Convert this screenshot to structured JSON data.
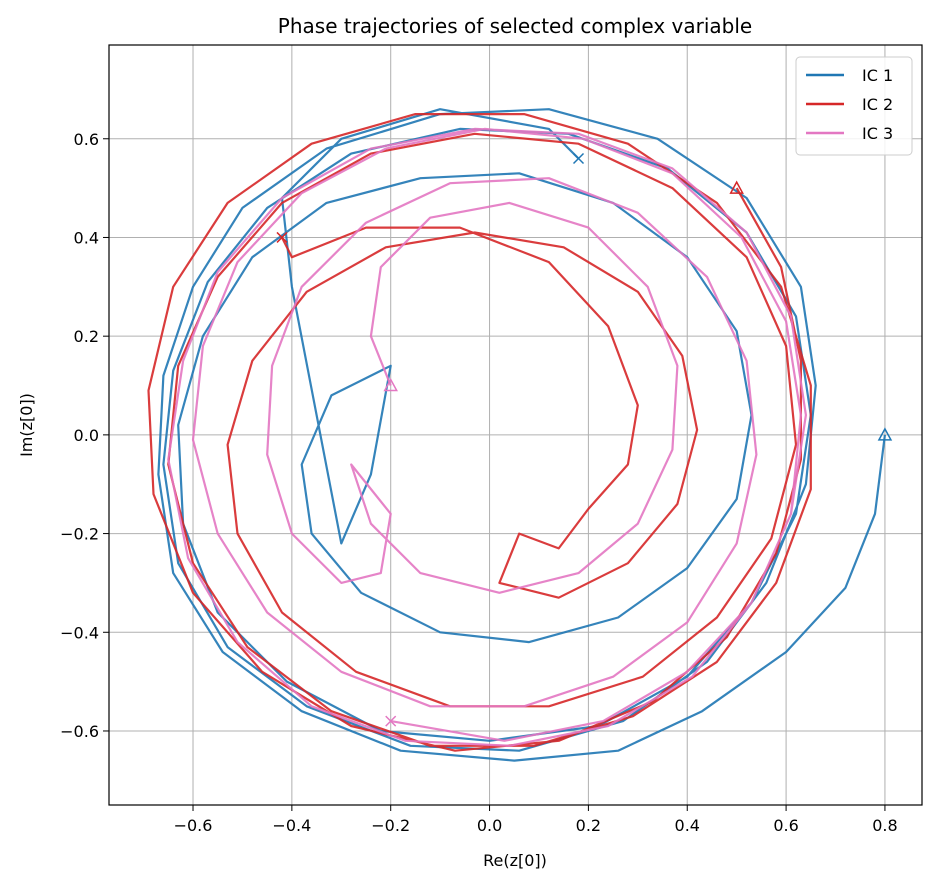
{
  "chart_data": {
    "type": "line",
    "title": "Phase trajectories of selected complex variable",
    "xlabel": "Re(z[0])",
    "ylabel": "Im(z[0])",
    "xlim": [
      -0.77,
      0.875
    ],
    "ylim": [
      -0.75,
      0.79
    ],
    "xticks": [
      -0.6,
      -0.4,
      -0.2,
      0.0,
      0.2,
      0.4,
      0.6,
      0.8
    ],
    "yticks": [
      -0.6,
      -0.4,
      -0.2,
      0.0,
      0.2,
      0.4,
      0.6
    ],
    "xtick_labels": [
      "−0.6",
      "−0.4",
      "−0.2",
      "0.0",
      "0.2",
      "0.4",
      "0.6",
      "0.8"
    ],
    "ytick_labels": [
      "−0.6",
      "−0.4",
      "−0.2",
      "0.0",
      "0.2",
      "0.4",
      "0.6"
    ],
    "grid": true,
    "legend_position": "top-right",
    "series": [
      {
        "name": "IC 1",
        "color": "#1f77b4",
        "start": [
          0.8,
          0.0
        ],
        "end": [
          0.18,
          0.56
        ],
        "loops": [
          {
            "r0": 0.8,
            "r1": 0.64,
            "a0": 0.0,
            "a1": 6.28
          },
          {
            "r0": 0.64,
            "r1": 0.6,
            "a0": 6.28,
            "a1": 18.85
          },
          {
            "r0": 0.6,
            "r1": 0.52,
            "a0": 18.85,
            "a1": 25.13
          },
          {
            "r0": 0.52,
            "r1": 0.42,
            "a0": 25.13,
            "a1": 29.0
          }
        ],
        "points": [
          [
            0.8,
            0.0
          ],
          [
            0.78,
            -0.16
          ],
          [
            0.72,
            -0.31
          ],
          [
            0.6,
            -0.44
          ],
          [
            0.43,
            -0.56
          ],
          [
            0.26,
            -0.64
          ],
          [
            0.05,
            -0.66
          ],
          [
            -0.18,
            -0.64
          ],
          [
            -0.38,
            -0.56
          ],
          [
            -0.54,
            -0.44
          ],
          [
            -0.64,
            -0.28
          ],
          [
            -0.67,
            -0.08
          ],
          [
            -0.66,
            0.12
          ],
          [
            -0.6,
            0.3
          ],
          [
            -0.5,
            0.46
          ],
          [
            -0.33,
            0.58
          ],
          [
            -0.1,
            0.65
          ],
          [
            0.12,
            0.66
          ],
          [
            0.34,
            0.6
          ],
          [
            0.52,
            0.48
          ],
          [
            0.63,
            0.3
          ],
          [
            0.66,
            0.1
          ],
          [
            0.64,
            -0.1
          ],
          [
            0.56,
            -0.3
          ],
          [
            0.44,
            -0.46
          ],
          [
            0.27,
            -0.58
          ],
          [
            0.06,
            -0.64
          ],
          [
            -0.16,
            -0.63
          ],
          [
            -0.37,
            -0.55
          ],
          [
            -0.53,
            -0.43
          ],
          [
            -0.63,
            -0.26
          ],
          [
            -0.66,
            -0.06
          ],
          [
            -0.64,
            0.13
          ],
          [
            -0.57,
            0.31
          ],
          [
            -0.45,
            0.46
          ],
          [
            -0.28,
            0.57
          ],
          [
            -0.06,
            0.62
          ],
          [
            0.16,
            0.61
          ],
          [
            0.36,
            0.54
          ],
          [
            0.52,
            0.41
          ],
          [
            0.62,
            0.24
          ],
          [
            0.65,
            0.04
          ],
          [
            0.62,
            -0.16
          ],
          [
            0.53,
            -0.34
          ],
          [
            0.4,
            -0.49
          ],
          [
            0.22,
            -0.59
          ],
          [
            0.0,
            -0.62
          ],
          [
            -0.22,
            -0.6
          ],
          [
            -0.41,
            -0.5
          ],
          [
            -0.55,
            -0.36
          ],
          [
            -0.62,
            -0.18
          ],
          [
            -0.63,
            0.02
          ],
          [
            -0.58,
            0.2
          ],
          [
            -0.48,
            0.36
          ],
          [
            -0.33,
            0.47
          ],
          [
            -0.14,
            0.52
          ],
          [
            0.06,
            0.53
          ],
          [
            0.25,
            0.47
          ],
          [
            0.4,
            0.36
          ],
          [
            0.5,
            0.21
          ],
          [
            0.53,
            0.04
          ],
          [
            0.5,
            -0.13
          ],
          [
            0.4,
            -0.27
          ],
          [
            0.26,
            -0.37
          ],
          [
            0.08,
            -0.42
          ],
          [
            -0.1,
            -0.4
          ],
          [
            -0.26,
            -0.32
          ],
          [
            -0.36,
            -0.2
          ],
          [
            -0.38,
            -0.06
          ],
          [
            -0.32,
            0.08
          ],
          [
            -0.2,
            0.14
          ],
          [
            -0.24,
            -0.08
          ],
          [
            -0.3,
            -0.22
          ],
          [
            -0.4,
            0.3
          ],
          [
            -0.42,
            0.48
          ],
          [
            -0.3,
            0.6
          ],
          [
            -0.1,
            0.66
          ],
          [
            0.12,
            0.62
          ],
          [
            0.18,
            0.56
          ]
        ]
      },
      {
        "name": "IC 2",
        "color": "#d62728",
        "start": [
          0.5,
          0.5
        ],
        "end": [
          -0.42,
          0.4
        ],
        "points": [
          [
            0.5,
            0.5
          ],
          [
            0.59,
            0.34
          ],
          [
            0.63,
            0.15
          ],
          [
            0.63,
            -0.05
          ],
          [
            0.58,
            -0.24
          ],
          [
            0.48,
            -0.41
          ],
          [
            0.33,
            -0.54
          ],
          [
            0.14,
            -0.62
          ],
          [
            -0.07,
            -0.64
          ],
          [
            -0.28,
            -0.59
          ],
          [
            -0.46,
            -0.48
          ],
          [
            -0.6,
            -0.32
          ],
          [
            -0.68,
            -0.12
          ],
          [
            -0.69,
            0.09
          ],
          [
            -0.64,
            0.3
          ],
          [
            -0.53,
            0.47
          ],
          [
            -0.36,
            0.59
          ],
          [
            -0.15,
            0.65
          ],
          [
            0.07,
            0.65
          ],
          [
            0.28,
            0.59
          ],
          [
            0.46,
            0.47
          ],
          [
            0.59,
            0.3
          ],
          [
            0.65,
            0.1
          ],
          [
            0.65,
            -0.11
          ],
          [
            0.58,
            -0.3
          ],
          [
            0.46,
            -0.46
          ],
          [
            0.29,
            -0.57
          ],
          [
            0.09,
            -0.63
          ],
          [
            -0.12,
            -0.63
          ],
          [
            -0.32,
            -0.56
          ],
          [
            -0.49,
            -0.43
          ],
          [
            -0.6,
            -0.26
          ],
          [
            -0.65,
            -0.06
          ],
          [
            -0.63,
            0.14
          ],
          [
            -0.55,
            0.32
          ],
          [
            -0.42,
            0.47
          ],
          [
            -0.24,
            0.57
          ],
          [
            -0.03,
            0.61
          ],
          [
            0.18,
            0.59
          ],
          [
            0.37,
            0.5
          ],
          [
            0.52,
            0.36
          ],
          [
            0.6,
            0.18
          ],
          [
            0.62,
            -0.02
          ],
          [
            0.57,
            -0.21
          ],
          [
            0.46,
            -0.37
          ],
          [
            0.31,
            -0.49
          ],
          [
            0.12,
            -0.55
          ],
          [
            -0.08,
            -0.55
          ],
          [
            -0.27,
            -0.48
          ],
          [
            -0.42,
            -0.36
          ],
          [
            -0.51,
            -0.2
          ],
          [
            -0.53,
            -0.02
          ],
          [
            -0.48,
            0.15
          ],
          [
            -0.37,
            0.29
          ],
          [
            -0.21,
            0.38
          ],
          [
            -0.03,
            0.41
          ],
          [
            0.15,
            0.38
          ],
          [
            0.3,
            0.29
          ],
          [
            0.39,
            0.16
          ],
          [
            0.42,
            0.01
          ],
          [
            0.38,
            -0.14
          ],
          [
            0.28,
            -0.26
          ],
          [
            0.14,
            -0.33
          ],
          [
            0.02,
            -0.3
          ],
          [
            0.06,
            -0.2
          ],
          [
            0.14,
            -0.23
          ],
          [
            0.2,
            -0.15
          ],
          [
            0.28,
            -0.06
          ],
          [
            0.3,
            0.06
          ],
          [
            0.24,
            0.22
          ],
          [
            0.12,
            0.35
          ],
          [
            -0.06,
            0.42
          ],
          [
            -0.25,
            0.42
          ],
          [
            -0.4,
            0.36
          ],
          [
            -0.42,
            0.4
          ]
        ]
      },
      {
        "name": "IC 3",
        "color": "#e377c2",
        "start": [
          -0.2,
          0.1
        ],
        "end": [
          -0.2,
          -0.58
        ],
        "points": [
          [
            -0.2,
            0.1
          ],
          [
            -0.24,
            0.2
          ],
          [
            -0.22,
            0.34
          ],
          [
            -0.12,
            0.44
          ],
          [
            0.04,
            0.47
          ],
          [
            0.2,
            0.42
          ],
          [
            0.32,
            0.3
          ],
          [
            0.38,
            0.14
          ],
          [
            0.37,
            -0.03
          ],
          [
            0.3,
            -0.18
          ],
          [
            0.18,
            -0.28
          ],
          [
            0.02,
            -0.32
          ],
          [
            -0.14,
            -0.28
          ],
          [
            -0.24,
            -0.18
          ],
          [
            -0.28,
            -0.06
          ],
          [
            -0.2,
            -0.16
          ],
          [
            -0.22,
            -0.28
          ],
          [
            -0.3,
            -0.3
          ],
          [
            -0.4,
            -0.2
          ],
          [
            -0.45,
            -0.04
          ],
          [
            -0.44,
            0.14
          ],
          [
            -0.38,
            0.3
          ],
          [
            -0.25,
            0.43
          ],
          [
            -0.08,
            0.51
          ],
          [
            0.12,
            0.52
          ],
          [
            0.3,
            0.45
          ],
          [
            0.44,
            0.32
          ],
          [
            0.52,
            0.15
          ],
          [
            0.54,
            -0.04
          ],
          [
            0.5,
            -0.22
          ],
          [
            0.4,
            -0.38
          ],
          [
            0.25,
            -0.49
          ],
          [
            0.07,
            -0.55
          ],
          [
            -0.12,
            -0.55
          ],
          [
            -0.3,
            -0.48
          ],
          [
            -0.45,
            -0.36
          ],
          [
            -0.55,
            -0.2
          ],
          [
            -0.6,
            -0.01
          ],
          [
            -0.58,
            0.18
          ],
          [
            -0.51,
            0.35
          ],
          [
            -0.38,
            0.49
          ],
          [
            -0.21,
            0.58
          ],
          [
            -0.01,
            0.62
          ],
          [
            0.19,
            0.6
          ],
          [
            0.37,
            0.53
          ],
          [
            0.51,
            0.4
          ],
          [
            0.6,
            0.23
          ],
          [
            0.63,
            0.04
          ],
          [
            0.61,
            -0.16
          ],
          [
            0.53,
            -0.34
          ],
          [
            0.41,
            -0.49
          ],
          [
            0.24,
            -0.59
          ],
          [
            0.04,
            -0.63
          ],
          [
            -0.17,
            -0.62
          ],
          [
            -0.36,
            -0.55
          ],
          [
            -0.51,
            -0.42
          ],
          [
            -0.61,
            -0.25
          ],
          [
            -0.65,
            -0.05
          ],
          [
            -0.62,
            0.15
          ],
          [
            -0.55,
            0.33
          ],
          [
            -0.42,
            0.48
          ],
          [
            -0.24,
            0.58
          ],
          [
            -0.03,
            0.62
          ],
          [
            0.18,
            0.61
          ],
          [
            0.37,
            0.54
          ],
          [
            0.52,
            0.41
          ],
          [
            0.61,
            0.24
          ],
          [
            0.64,
            0.04
          ],
          [
            0.61,
            -0.16
          ],
          [
            0.53,
            -0.34
          ],
          [
            0.4,
            -0.48
          ],
          [
            0.23,
            -0.58
          ],
          [
            0.03,
            -0.62
          ],
          [
            -0.2,
            -0.58
          ]
        ]
      }
    ],
    "legend": [
      "IC 1",
      "IC 2",
      "IC 3"
    ]
  }
}
